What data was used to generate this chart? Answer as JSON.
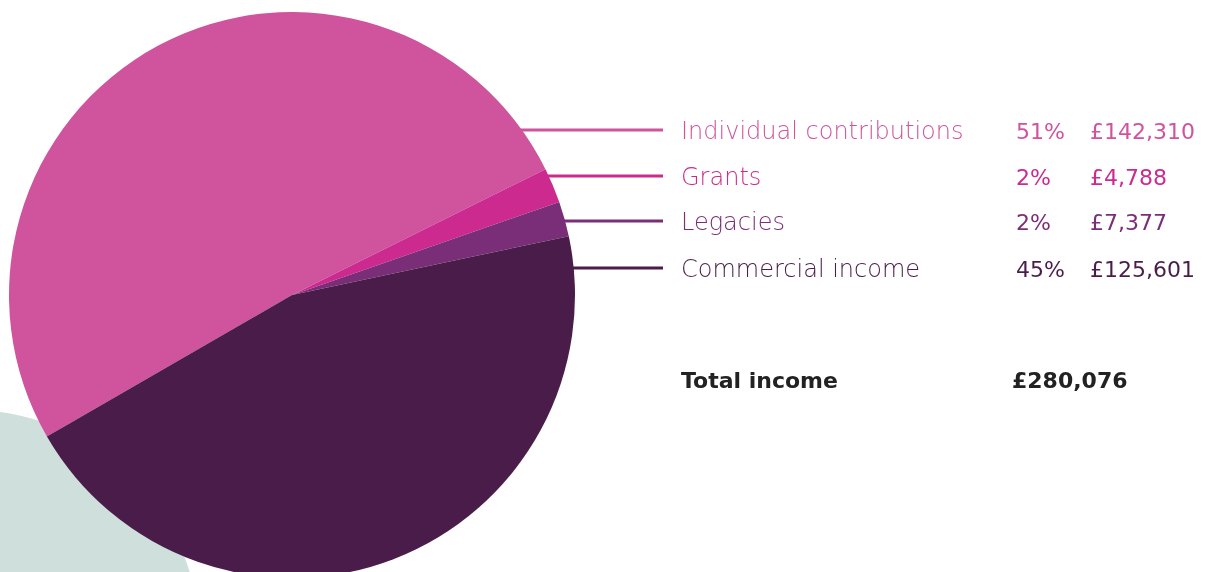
{
  "chart_data": {
    "type": "pie",
    "categories": [
      "Individual contributions",
      "Grants",
      "Legacies",
      "Commercial income"
    ],
    "values": [
      51,
      2,
      2,
      45
    ],
    "colors": [
      "#cf539d",
      "#cc2a8e",
      "#7b2e78",
      "#4a1c4a"
    ],
    "annotations": [
      "51%",
      "£142,310",
      "2%",
      "£4,788",
      "2%",
      "£7,377",
      "45%",
      "£125,601",
      "Total income",
      "£280,076"
    ]
  }
}
